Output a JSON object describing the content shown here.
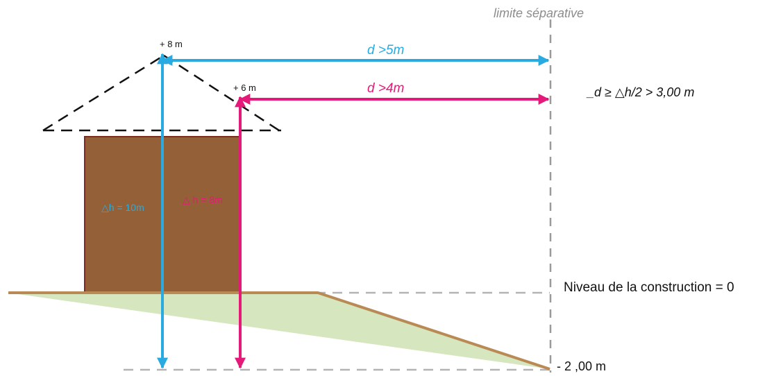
{
  "labels": {
    "boundary": "limite séparative",
    "top_blue": "+ 8 m",
    "top_pink": "+ 6 m",
    "dist_blue": "d >5m",
    "dist_pink": "d >4m",
    "rule": "_d ≥ △h/2 > 3,00 m",
    "dh_blue": "△h = 10m",
    "dh_pink": "△ h = 8m",
    "ground_level": "Niveau de la construction = 0",
    "low_level": "- 2 ,00 m"
  },
  "colors": {
    "blue": "#29abe2",
    "pink": "#e5197a",
    "building": "#936037",
    "building_edge": "#7d2a1f",
    "ground": "#b98a55",
    "ground_fill": "#d6e6bf",
    "dashed_gray": "#b3b3b3",
    "roof_dash": "#111111",
    "text": "#111111",
    "boundary_text": "#8c8c8c"
  }
}
